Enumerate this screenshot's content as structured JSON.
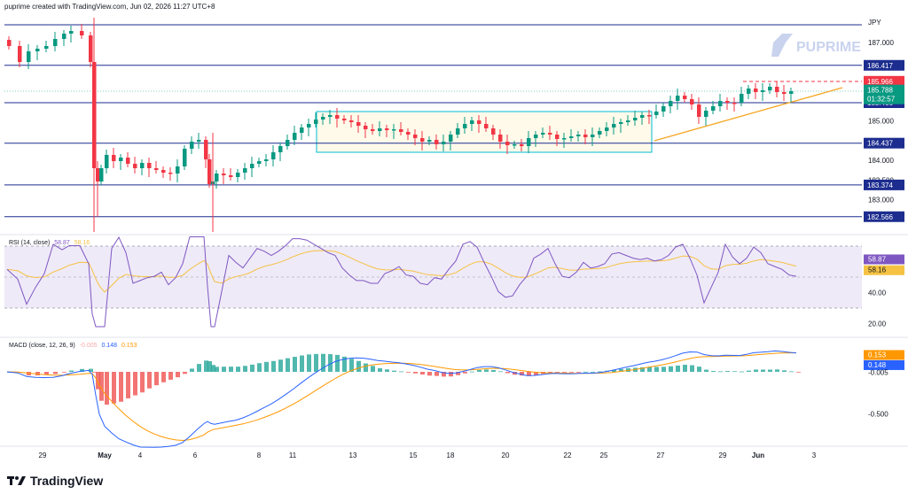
{
  "header": {
    "caption": "puprime created with TradingView.com, Jun 02, 2026 11:27 UTC+8"
  },
  "currency": "JPY",
  "watermark": {
    "text": "PUPRIME"
  },
  "footer": {
    "brand": "TradingView"
  },
  "price_axis": {
    "ticks": [
      "187.000",
      "186.000",
      "185.000",
      "184.000",
      "183.000"
    ],
    "levels": [
      {
        "label": "186.417",
        "value": 186.417
      },
      {
        "label": "185.466",
        "value": 185.466
      },
      {
        "label": "184.437",
        "value": 184.437
      },
      {
        "label": "183.374",
        "value": 183.374
      },
      {
        "label": "182.566",
        "value": 182.566
      }
    ],
    "partial_ticks": [
      "183.500"
    ],
    "resistance": {
      "label": "185.966",
      "value": 185.966,
      "color": "#f23645"
    },
    "last": {
      "label": "185.788",
      "value": 185.788,
      "countdown": "01:32:57",
      "color": "#089981"
    }
  },
  "rsi": {
    "title": "RSI (14, close)",
    "value_rsi": "58.87",
    "value_ma": "58.16",
    "ticks": [
      "60.00",
      "40.00",
      "20.00"
    ],
    "rsi_color": "#7e57c2",
    "ma_color": "#f5c242"
  },
  "macd": {
    "title": "MACD (close, 12, 26, 9)",
    "value_hist": "-0.005",
    "value_macd": "0.148",
    "value_signal": "0.153",
    "ticks": [
      "-0.500"
    ],
    "macd_color": "#2962ff",
    "signal_color": "#ff9800"
  },
  "time_axis": {
    "labels": [
      "29",
      "May",
      "4",
      "6",
      "8",
      "11",
      "13",
      "15",
      "18",
      "20",
      "22",
      "25",
      "27",
      "29",
      "Jun",
      "3"
    ]
  },
  "colors": {
    "up": "#089981",
    "down": "#f23645",
    "level_line": "#1c2d8f",
    "box": "#00bcd4",
    "trend": "#f5a623"
  }
}
